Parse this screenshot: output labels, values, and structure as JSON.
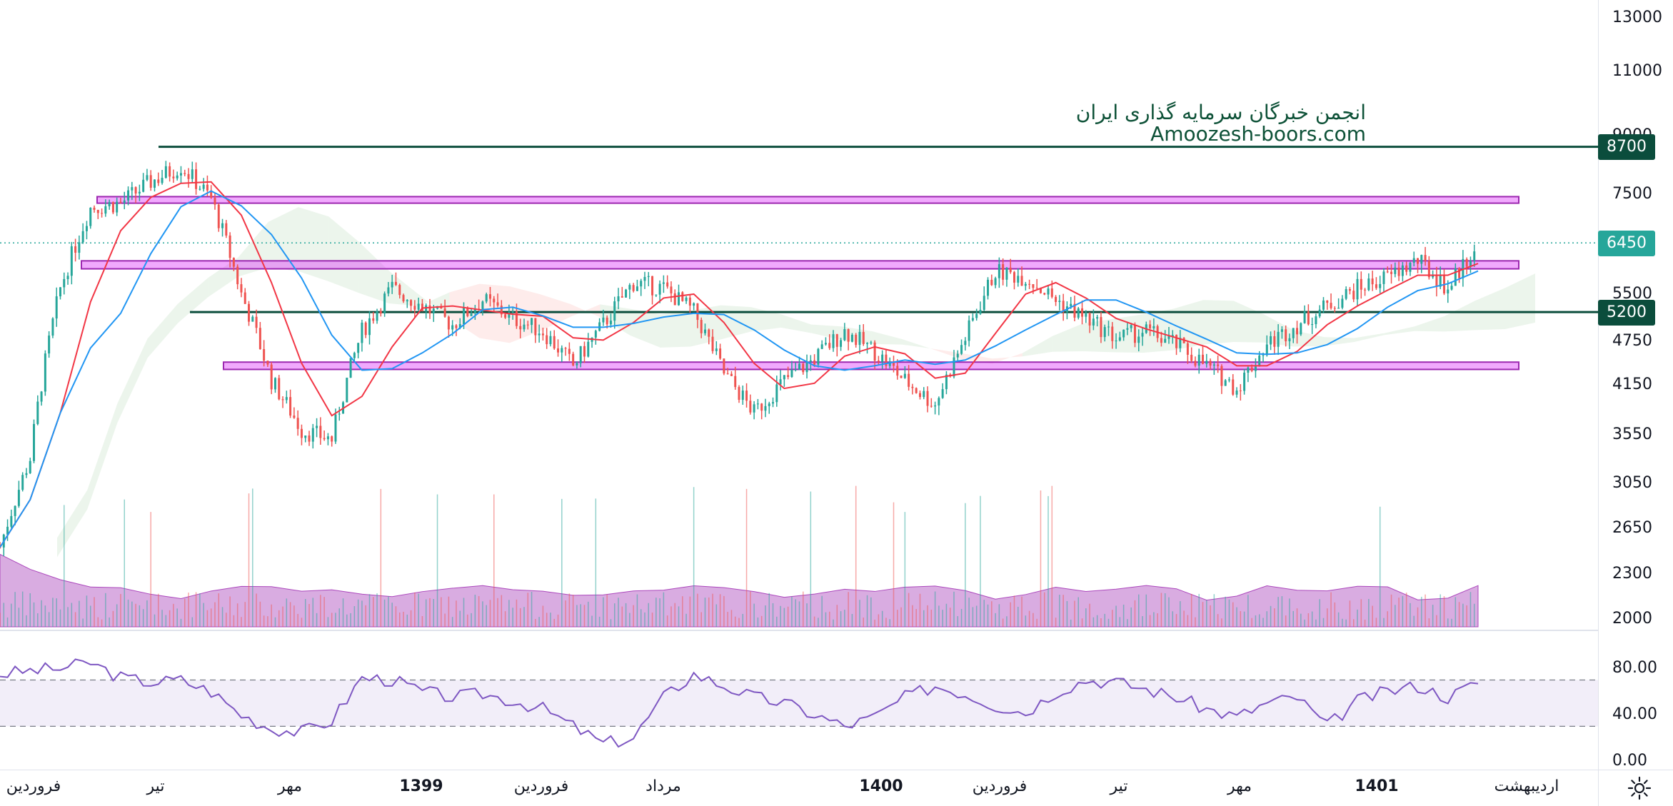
{
  "chart_data": {
    "type": "candlestick",
    "watermark": {
      "line1": "انجمن خبرگان سرمایه گذاری ایران",
      "line2": "Amoozesh-boors.com"
    },
    "price_axis": {
      "scale": "log",
      "ticks": [
        "13000",
        "11000",
        "9000",
        "8700",
        "7500",
        "6450",
        "5500",
        "5200",
        "4750",
        "4150",
        "3550",
        "3050",
        "2650",
        "2300",
        "2000"
      ]
    },
    "horizontal_levels": [
      {
        "type": "line",
        "value": 8700,
        "color": "#0b4d3c",
        "label": "8700"
      },
      {
        "type": "zone",
        "from": 7300,
        "to": 7450,
        "color": "#e040fb"
      },
      {
        "type": "zone",
        "from": 5950,
        "to": 6100,
        "color": "#e040fb"
      },
      {
        "type": "line",
        "value": 5200,
        "color": "#0b4d3c",
        "label": "5200"
      },
      {
        "type": "zone",
        "from": 4350,
        "to": 4450,
        "color": "#e040fb"
      }
    ],
    "last_price": {
      "value": 6450,
      "label": "6450",
      "color": "#26a69a"
    },
    "x_axis": {
      "labels": [
        {
          "text": "فروردین",
          "bold": false
        },
        {
          "text": "تیر",
          "bold": false
        },
        {
          "text": "مهر",
          "bold": false
        },
        {
          "text": "1399",
          "bold": true
        },
        {
          "text": "فروردین",
          "bold": false
        },
        {
          "text": "مرداد",
          "bold": false
        },
        {
          "text": "1400",
          "bold": true
        },
        {
          "text": "فروردین",
          "bold": false
        },
        {
          "text": "تیر",
          "bold": false
        },
        {
          "text": "مهر",
          "bold": false
        },
        {
          "text": "1401",
          "bold": true
        },
        {
          "text": "اردیبهشت",
          "bold": false
        }
      ]
    },
    "price_series": {
      "name": "Close",
      "approx_closes": [
        2500,
        3300,
        5600,
        7200,
        7300,
        7800,
        8200,
        7400,
        5500,
        4200,
        3600,
        3500,
        4900,
        5600,
        5300,
        5000,
        5400,
        5100,
        4900,
        4400,
        5000,
        5700,
        5600,
        5200,
        4300,
        3800,
        4200,
        4500,
        4900,
        4600,
        4200,
        3900,
        4800,
        5900,
        5800,
        5400,
        5100,
        4800,
        4900,
        4700,
        4400,
        4100,
        4700,
        5000,
        5300,
        5600,
        5800,
        6100,
        5600,
        6450
      ]
    },
    "moving_averages": [
      {
        "color": "#f23645"
      },
      {
        "color": "#2196f3"
      }
    ],
    "rsi": {
      "ticks": [
        "80.00",
        "40.00",
        "0.00"
      ],
      "upper_band": 70,
      "lower_band": 30,
      "line_color": "#7e57c2",
      "approx_values": [
        75,
        78,
        80,
        85,
        72,
        68,
        70,
        60,
        40,
        28,
        25,
        35,
        72,
        70,
        60,
        55,
        58,
        52,
        45,
        30,
        15,
        20,
        55,
        75,
        65,
        55,
        50,
        40,
        30,
        38,
        55,
        65,
        58,
        48,
        42,
        60,
        70,
        68,
        62,
        55,
        45,
        38,
        50,
        55,
        30,
        52,
        60,
        65,
        55,
        68
      ]
    }
  },
  "settings_icon": "gear-icon"
}
